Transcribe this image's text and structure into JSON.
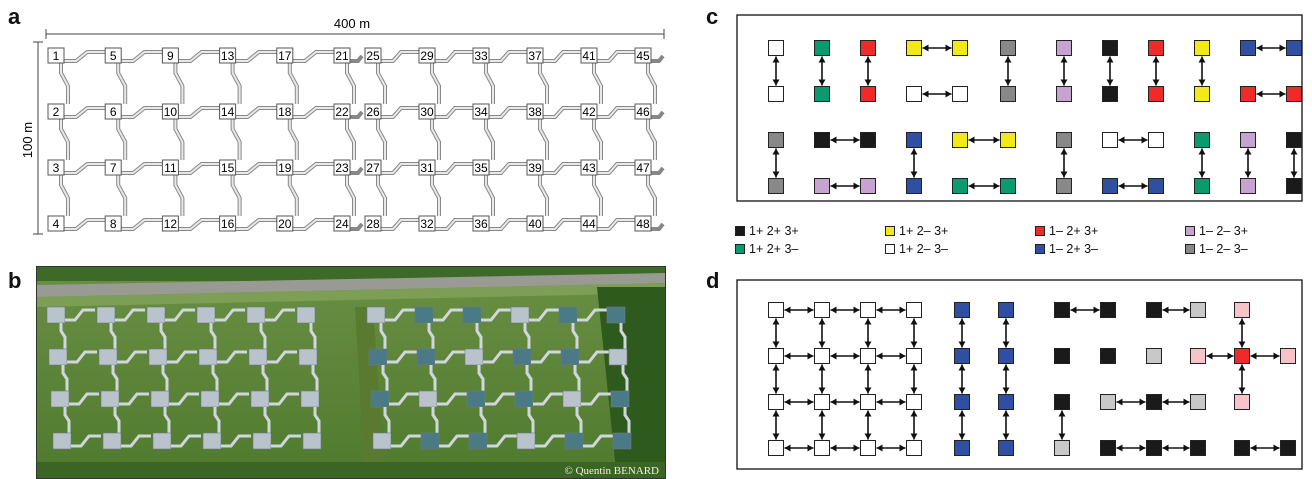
{
  "panel_labels": {
    "a": "a",
    "b": "b",
    "c": "c",
    "d": "d"
  },
  "panel_a": {
    "width_label": "400 m",
    "height_label": "100 m",
    "plot_numbers": [
      [
        "1",
        "5",
        "9",
        "13",
        "17",
        "21",
        "25",
        "29",
        "33",
        "37",
        "41",
        "45"
      ],
      [
        "2",
        "6",
        "10",
        "14",
        "18",
        "22",
        "26",
        "30",
        "34",
        "38",
        "42",
        "46"
      ],
      [
        "3",
        "7",
        "11",
        "15",
        "19",
        "23",
        "27",
        "31",
        "35",
        "39",
        "43",
        "47"
      ],
      [
        "4",
        "8",
        "12",
        "16",
        "20",
        "24",
        "28",
        "32",
        "36",
        "40",
        "44",
        "48"
      ]
    ]
  },
  "panel_b": {
    "credit": "© Quentin BENARD"
  },
  "colors": {
    "black": "#1a1a1a",
    "yellow": "#f2ea18",
    "red": "#ee2a2a",
    "lilac": "#c6a3d1",
    "green": "#0a9a6e",
    "white": "#ffffff",
    "blue": "#2f4fa3",
    "gray": "#888888",
    "lightgray": "#c8c8c8",
    "pink": "#f7c3cb"
  },
  "legend": [
    {
      "label": "1+ 2+ 3+",
      "color": "black"
    },
    {
      "label": "1+ 2– 3+",
      "color": "yellow"
    },
    {
      "label": "1– 2+ 3+",
      "color": "red"
    },
    {
      "label": "1– 2– 3+",
      "color": "lilac"
    },
    {
      "label": "1+ 2+ 3–",
      "color": "green"
    },
    {
      "label": "1+ 2– 3–",
      "color": "white"
    },
    {
      "label": "1– 2+ 3–",
      "color": "blue"
    },
    {
      "label": "1– 2– 3–",
      "color": "gray"
    }
  ],
  "panel_c": {
    "rows": [
      [
        "white",
        "green",
        "red",
        "yellow",
        "yellow",
        "gray",
        "lilac",
        "black",
        "red",
        "yellow",
        "blue",
        "blue"
      ],
      [
        "white",
        "green",
        "red",
        "white",
        "white",
        "gray",
        "lilac",
        "black",
        "red",
        "yellow",
        "red",
        "red"
      ],
      [
        "gray",
        "black",
        "black",
        "blue",
        "yellow",
        "yellow",
        "gray",
        "white",
        "white",
        "green",
        "lilac",
        "black"
      ],
      [
        "gray",
        "lilac",
        "lilac",
        "blue",
        "green",
        "green",
        "gray",
        "blue",
        "blue",
        "green",
        "lilac",
        "black"
      ]
    ],
    "h_links": [
      [
        0,
        3,
        4
      ],
      [
        0,
        10,
        11
      ],
      [
        1,
        3,
        4
      ],
      [
        1,
        10,
        11
      ],
      [
        2,
        1,
        2
      ],
      [
        2,
        4,
        5
      ],
      [
        2,
        7,
        8
      ],
      [
        3,
        1,
        2
      ],
      [
        3,
        4,
        5
      ],
      [
        3,
        7,
        8
      ]
    ],
    "v_links": [
      [
        0,
        1,
        0
      ],
      [
        0,
        1,
        1
      ],
      [
        0,
        1,
        2
      ],
      [
        0,
        1,
        5
      ],
      [
        0,
        1,
        6
      ],
      [
        0,
        1,
        7
      ],
      [
        0,
        1,
        8
      ],
      [
        0,
        1,
        9
      ],
      [
        2,
        3,
        0
      ],
      [
        2,
        3,
        3
      ],
      [
        2,
        3,
        6
      ],
      [
        2,
        3,
        9
      ],
      [
        2,
        3,
        10
      ],
      [
        2,
        3,
        11
      ]
    ]
  },
  "panel_d": {
    "rows": [
      [
        "white",
        "white",
        "white",
        "white",
        "blue",
        "blue",
        "black",
        "black",
        "black",
        "lightgray",
        "pink"
      ],
      [
        "white",
        "white",
        "white",
        "white",
        "blue",
        "blue",
        "black",
        "black",
        "lightgray",
        "pink",
        "red",
        "pink"
      ],
      [
        "white",
        "white",
        "white",
        "white",
        "blue",
        "blue",
        "black",
        "lightgray",
        "black",
        "lightgray",
        "pink"
      ],
      [
        "white",
        "white",
        "white",
        "white",
        "blue",
        "blue",
        "lightgray",
        "black",
        "black",
        "black",
        "black",
        "black"
      ]
    ]
  }
}
